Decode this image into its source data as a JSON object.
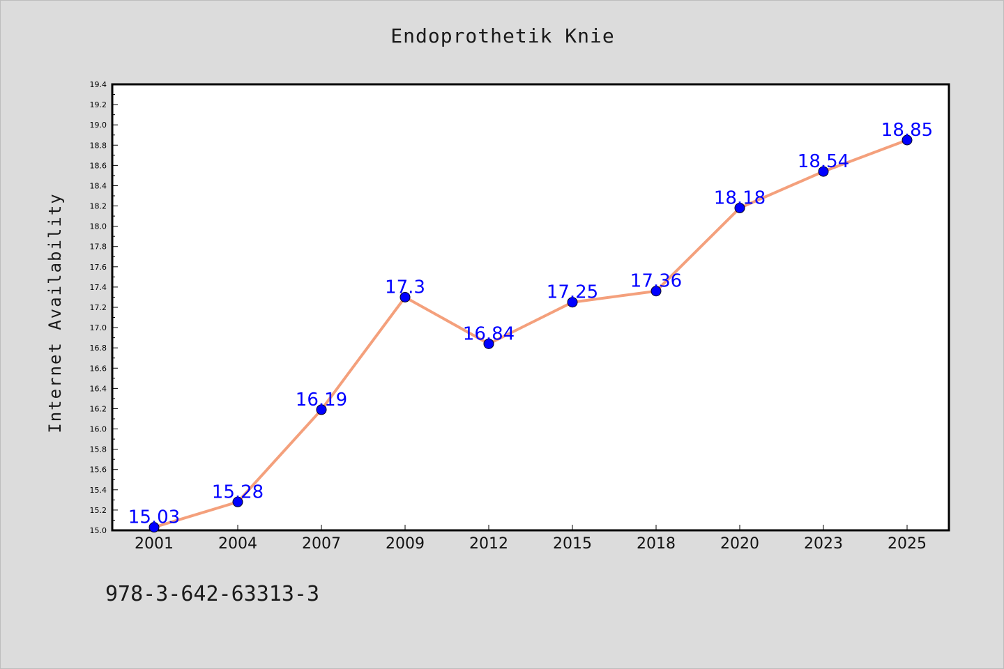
{
  "chart_data": {
    "type": "line",
    "title": "Endoprothetik Knie",
    "xlabel": "",
    "ylabel": "Internet Availability",
    "categories": [
      "2001",
      "2004",
      "2007",
      "2009",
      "2012",
      "2015",
      "2018",
      "2020",
      "2023",
      "2025"
    ],
    "series": [
      {
        "values": [
          15.03,
          15.28,
          16.19,
          17.3,
          16.84,
          17.25,
          17.36,
          18.18,
          18.54,
          18.85
        ],
        "labels": [
          "15.03",
          "15.28",
          "16.19",
          "17.3",
          "16.84",
          "17.25",
          "17.36",
          "18.18",
          "18.54",
          "18.85"
        ],
        "line_color": "#f4a07c",
        "marker_color": "#0000ff"
      }
    ],
    "ylim": [
      15.0,
      19.4
    ],
    "yticks": [
      "15.0",
      "15.2",
      "15.4",
      "15.6",
      "15.8",
      "16.0",
      "16.2",
      "16.4",
      "16.6",
      "16.8",
      "17.0",
      "17.2",
      "17.4",
      "17.6",
      "17.8",
      "18.0",
      "18.2",
      "18.4",
      "18.6",
      "18.8",
      "19.0",
      "19.2",
      "19.4"
    ],
    "grid": false,
    "label_color": "#0000ff",
    "background": "#dcdcdc",
    "plot_background": "#ffffff"
  },
  "footer": {
    "text": "978-3-642-63313-3"
  }
}
